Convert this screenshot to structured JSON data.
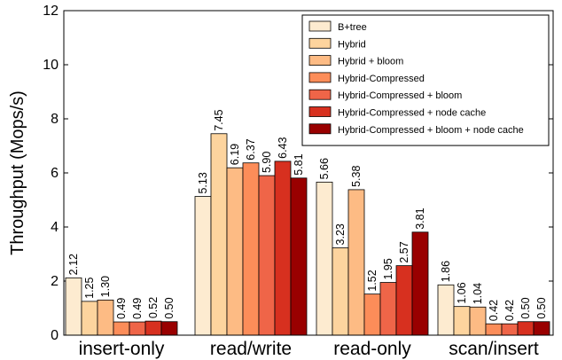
{
  "chart_data": {
    "type": "bar",
    "title": "",
    "xlabel": "",
    "ylabel": "Throughput (Mops/s)",
    "ylim": [
      0,
      12
    ],
    "yticks": [
      0,
      2,
      4,
      6,
      8,
      10,
      12
    ],
    "grid": false,
    "legend_position": "top-right",
    "categories": [
      "insert-only",
      "read/write",
      "read-only",
      "scan/insert"
    ],
    "series": [
      {
        "name": "B+tree",
        "color": "#fdebd0",
        "values": [
          2.12,
          5.13,
          5.66,
          1.86
        ],
        "labels": [
          "2.12",
          "5.13",
          "5.66",
          "1.86"
        ]
      },
      {
        "name": "Hybrid",
        "color": "#fdd49e",
        "values": [
          1.25,
          7.45,
          3.23,
          1.06
        ],
        "labels": [
          "1.25",
          "7.45",
          "3.23",
          "1.06"
        ]
      },
      {
        "name": "Hybrid + bloom",
        "color": "#fdbb84",
        "values": [
          1.3,
          6.19,
          5.38,
          1.04
        ],
        "labels": [
          "1.30",
          "6.19",
          "5.38",
          "1.04"
        ]
      },
      {
        "name": "Hybrid-Compressed",
        "color": "#fc8d59",
        "values": [
          0.49,
          6.37,
          1.52,
          0.42
        ],
        "labels": [
          "0.49",
          "6.37",
          "1.52",
          "0.42"
        ]
      },
      {
        "name": "Hybrid-Compressed + bloom",
        "color": "#ef6548",
        "values": [
          0.49,
          5.9,
          1.95,
          0.42
        ],
        "labels": [
          "0.49",
          "5.90",
          "1.95",
          "0.42"
        ]
      },
      {
        "name": "Hybrid-Compressed + node cache",
        "color": "#d7301f",
        "values": [
          0.52,
          6.43,
          2.57,
          0.5
        ],
        "labels": [
          "0.52",
          "6.43",
          "2.57",
          "0.50"
        ]
      },
      {
        "name": "Hybrid-Compressed + bloom + node cache",
        "color": "#990000",
        "values": [
          0.5,
          5.81,
          3.81,
          0.5
        ],
        "labels": [
          "0.50",
          "5.81",
          "3.81",
          "0.50"
        ]
      }
    ]
  }
}
